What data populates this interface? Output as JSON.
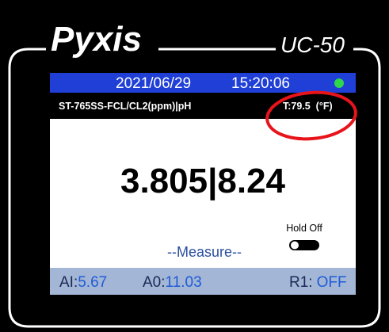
{
  "device": {
    "brand": "Pyxis",
    "model": "UC-50"
  },
  "screen": {
    "date": "2021/06/29",
    "time": "15:20:06",
    "sensor": "ST-765SS-FCL/CL2(ppm)|pH",
    "temperature": "T:79.5  (°F)",
    "reading": "3.805|8.24",
    "hold": "Hold Off",
    "mode": "--Measure--",
    "outputs": [
      {
        "label": "AI:",
        "value": "5.67"
      },
      {
        "label": "A0:",
        "value": "11.03"
      },
      {
        "label": "R1:",
        "value": "OFF"
      }
    ]
  }
}
